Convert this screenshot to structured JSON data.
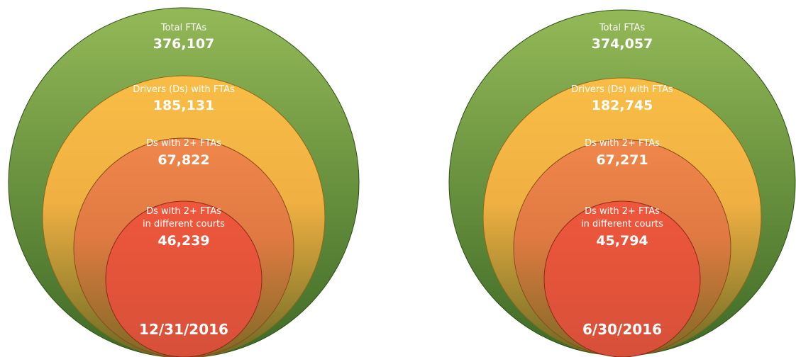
{
  "colors": {
    "ring1_light": "#93b957",
    "ring1_dark": "#3f6a26",
    "ring2_light": "#f8bd46",
    "ring2_dark": "#6b6a25",
    "ring3_light": "#f0874c",
    "ring3_dark": "#7f6a24",
    "ring4_light": "#ef573b",
    "ring4_dark": "#d7503a"
  },
  "diagrams": [
    {
      "total_label": "Total FTAs",
      "total_value": "376,107",
      "drivers_label": "Drivers (Ds) with FTAs",
      "drivers_value": "185,131",
      "multi_label": "Ds with 2+ FTAs",
      "multi_value": "67,822",
      "courts_label_line1": "Ds with 2+ FTAs",
      "courts_label_line2": "in different courts",
      "courts_value": "46,239",
      "date": "12/31/2016"
    },
    {
      "total_label": "Total FTAs",
      "total_value": "374,057",
      "drivers_label": "Drivers (Ds) with FTAs",
      "drivers_value": "182,745",
      "multi_label": "Ds with 2+ FTAs",
      "multi_value": "67,271",
      "courts_label_line1": "Ds with 2+ FTAs",
      "courts_label_line2": "in different courts",
      "courts_value": "45,794",
      "date": "6/30/2016"
    }
  ]
}
